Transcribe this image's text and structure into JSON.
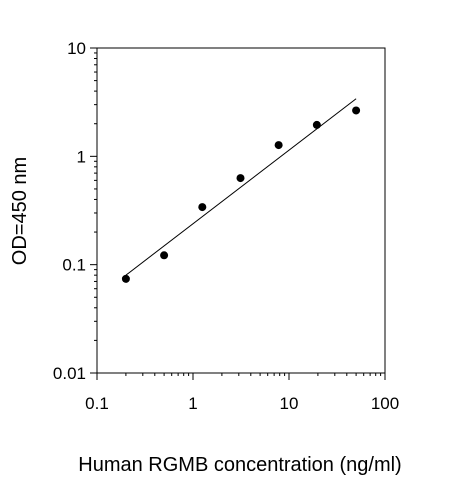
{
  "chart_data": {
    "type": "scatter",
    "title": "",
    "xlabel": "Human RGMB concentration (ng/ml)",
    "ylabel": "OD=450 nm",
    "x_scale": "log",
    "y_scale": "log",
    "xlim": [
      0.1,
      100
    ],
    "ylim": [
      0.01,
      10
    ],
    "x_ticks": [
      0.1,
      1,
      10,
      100
    ],
    "x_tick_labels": [
      "0.1",
      "1",
      "10",
      "100"
    ],
    "y_ticks": [
      0.01,
      0.1,
      1,
      10
    ],
    "y_tick_labels": [
      "0.01",
      "0.1",
      "1",
      "10"
    ],
    "grid": false,
    "legend": "none",
    "series": [
      {
        "x": [
          0.2,
          0.5,
          1.25,
          3.125,
          7.8,
          19.5,
          50
        ],
        "y": [
          0.074,
          0.122,
          0.34,
          0.63,
          1.27,
          1.95,
          2.65
        ]
      }
    ],
    "trendline": {
      "x": [
        0.2,
        50
      ],
      "y": [
        0.08,
        3.4
      ]
    },
    "colors": {
      "points": "#000000",
      "line": "#000000",
      "axes": "#000000"
    }
  }
}
